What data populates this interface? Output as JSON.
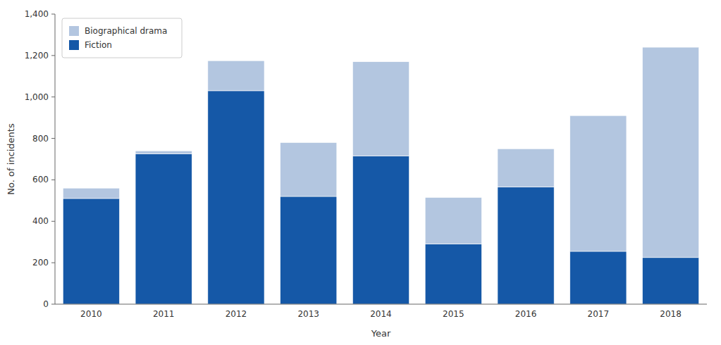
{
  "chart_data": {
    "type": "bar",
    "stacked": true,
    "categories": [
      "2010",
      "2011",
      "2012",
      "2013",
      "2014",
      "2015",
      "2016",
      "2017",
      "2018"
    ],
    "series": [
      {
        "name": "Fiction",
        "color": "#1558a7",
        "values": [
          510,
          725,
          1030,
          520,
          715,
          290,
          565,
          255,
          225
        ]
      },
      {
        "name": "Biographical drama",
        "color": "#b3c6e0",
        "values": [
          50,
          15,
          145,
          260,
          455,
          225,
          185,
          655,
          1015
        ]
      }
    ],
    "xlabel": "Year",
    "ylabel": "No. of incidents",
    "ylim": [
      0,
      1400
    ],
    "yticks": [
      0,
      200,
      400,
      600,
      800,
      {
        "value": 1000,
        "label": "1,000"
      },
      {
        "value": 1200,
        "label": "1,200"
      },
      {
        "value": 1400,
        "label": "1,400"
      }
    ],
    "grid": false,
    "legend": "upper left"
  }
}
